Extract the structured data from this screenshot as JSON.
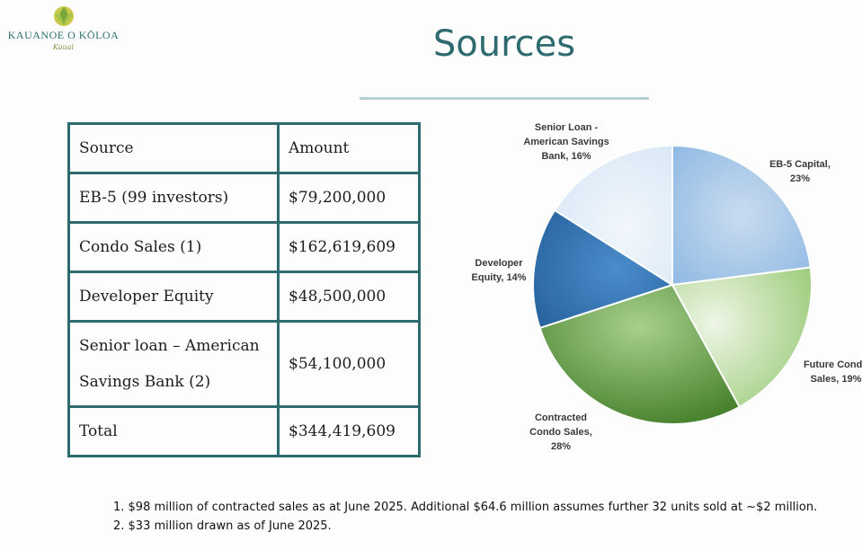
{
  "logo": {
    "name": "KAUANOE O KŌLOA",
    "script": "Kauai"
  },
  "title": "Sources",
  "table": {
    "header": [
      "Source",
      "Amount"
    ],
    "rows": [
      {
        "source": "EB-5 (99 investors)",
        "amount": "$79,200,000"
      },
      {
        "source": "Condo Sales (1)",
        "amount": "$162,619,609"
      },
      {
        "source": "Developer Equity",
        "amount": "$48,500,000"
      },
      {
        "source_line1": "Senior loan – American",
        "source_line2": "Savings Bank (2)",
        "amount": "$54,100,000"
      },
      {
        "source": "Total",
        "amount": "$344,419,609"
      }
    ]
  },
  "chart_data": {
    "type": "pie",
    "slices": [
      {
        "label_lines": [
          "EB-5 Capital,",
          "23%"
        ],
        "value": 23,
        "color": "#9dc3e6"
      },
      {
        "label_lines": [
          "Future Condo",
          "Sales, 19%"
        ],
        "value": 19,
        "color": "#a9d18e"
      },
      {
        "label_lines": [
          "Contracted",
          "Condo Sales,",
          "28%"
        ],
        "value": 28,
        "color": "#548235"
      },
      {
        "label_lines": [
          "Developer",
          "Equity, 14%"
        ],
        "value": 14,
        "color": "#2e75b6"
      },
      {
        "label_lines": [
          "Senior Loan -",
          "American Savings",
          "Bank, 16%"
        ],
        "value": 16,
        "color": "#ddebf7"
      }
    ]
  },
  "notes": [
    "1. $98 million of contracted sales as at June 2025. Additional $64.6 million assumes further 32 units sold at ~$2 million.",
    "2. $33 million drawn as of June 2025."
  ]
}
